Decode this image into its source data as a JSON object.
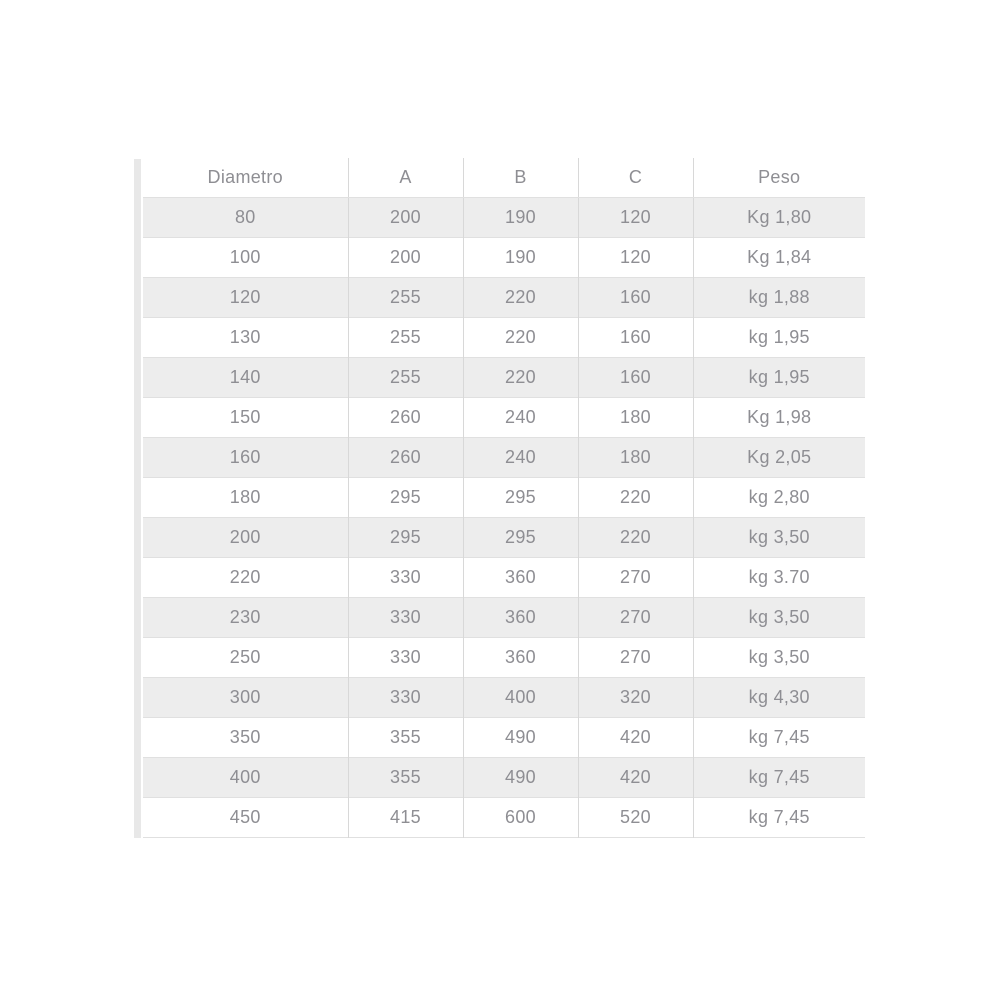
{
  "table": {
    "columns": [
      "Diametro",
      "A",
      "B",
      "C",
      "Peso"
    ],
    "rows": [
      [
        "80",
        "200",
        "190",
        "120",
        "Kg 1,80"
      ],
      [
        "100",
        "200",
        "190",
        "120",
        "Kg 1,84"
      ],
      [
        "120",
        "255",
        "220",
        "160",
        "kg 1,88"
      ],
      [
        "130",
        "255",
        "220",
        "160",
        "kg 1,95"
      ],
      [
        "140",
        "255",
        "220",
        "160",
        "kg 1,95"
      ],
      [
        "150",
        "260",
        "240",
        "180",
        "Kg 1,98"
      ],
      [
        "160",
        "260",
        "240",
        "180",
        "Kg 2,05"
      ],
      [
        "180",
        "295",
        "295",
        "220",
        "kg 2,80"
      ],
      [
        "200",
        "295",
        "295",
        "220",
        "kg 3,50"
      ],
      [
        "220",
        "330",
        "360",
        "270",
        "kg 3.70"
      ],
      [
        "230",
        "330",
        "360",
        "270",
        "kg 3,50"
      ],
      [
        "250",
        "330",
        "360",
        "270",
        "kg 3,50"
      ],
      [
        "300",
        "330",
        "400",
        "320",
        "kg 4,30"
      ],
      [
        "350",
        "355",
        "490",
        "420",
        "kg 7,45"
      ],
      [
        "400",
        "355",
        "490",
        "420",
        "kg 7,45"
      ],
      [
        "450",
        "415",
        "600",
        "520",
        "kg 7,45"
      ]
    ]
  },
  "colors": {
    "row_alt_background": "#ededed",
    "cell_border_vertical": "#d8d8d8",
    "row_border_horizontal": "#e0e0e0",
    "text": "#8e8e93",
    "left_strip": "#e8e8e8",
    "page_background": "#ffffff"
  }
}
